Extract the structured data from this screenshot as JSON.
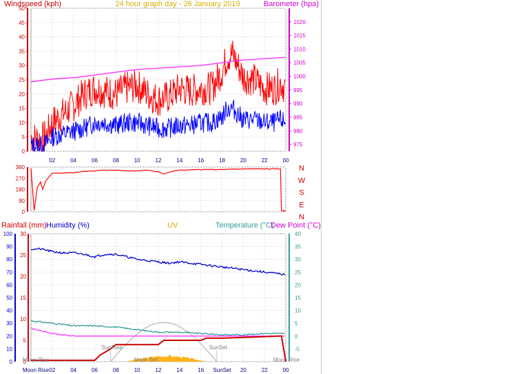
{
  "chart_data": [
    {
      "type": "line",
      "title": "24 hour graph day - 26 January 2019",
      "left_axis_label": "Windspeed (kph)",
      "right_axis_label": "Barometer (hpa)",
      "x_ticks": [
        "02",
        "04",
        "06",
        "08",
        "10",
        "12",
        "14",
        "16",
        "18",
        "20",
        "22",
        "00"
      ],
      "left_ticks": [
        0,
        5,
        10,
        15,
        20,
        25,
        30,
        35,
        40,
        45,
        50
      ],
      "left_range": [
        0,
        50
      ],
      "right_ticks": [
        975,
        980,
        985,
        990,
        995,
        1000,
        1005,
        1010,
        1015,
        1020
      ],
      "right_range": [
        972.5,
        1025
      ],
      "grid": true,
      "colors": {
        "wind_gust": "#ff0000",
        "wind_avg": "#0000ff",
        "barometer": "#ff33ff"
      },
      "series": [
        {
          "key": "wind_gust",
          "axis": "left",
          "x": [
            0,
            1,
            1.5,
            2,
            3,
            4,
            5,
            6,
            7,
            8,
            9,
            10,
            11,
            12,
            13,
            14,
            15,
            16,
            17,
            18,
            18.5,
            19,
            19.5,
            20,
            21,
            22,
            23,
            23.5,
            24
          ],
          "values": [
            5,
            4,
            6,
            10,
            13,
            16,
            20,
            22,
            21,
            20,
            22,
            23,
            20,
            18,
            19,
            22,
            21,
            22,
            22,
            28,
            33,
            34,
            30,
            26,
            25,
            22,
            22,
            24,
            22
          ]
        },
        {
          "key": "wind_avg",
          "axis": "left",
          "x": [
            0,
            1,
            1.5,
            2,
            3,
            4,
            5,
            6,
            7,
            8,
            9,
            10,
            11,
            12,
            13,
            14,
            15,
            16,
            17,
            18,
            18.5,
            19,
            19.5,
            20,
            21,
            22,
            23,
            23.5,
            24
          ],
          "values": [
            2,
            2,
            3,
            5,
            6,
            7,
            8,
            10,
            10,
            9,
            10,
            10,
            9,
            8,
            8,
            9,
            9,
            10,
            10,
            12,
            15,
            15,
            13,
            11,
            11,
            10,
            10,
            11,
            10
          ]
        },
        {
          "key": "barometer",
          "axis": "right",
          "x": [
            0,
            2,
            4,
            6,
            8,
            10,
            12,
            14,
            16,
            18,
            20,
            22,
            24
          ],
          "values": [
            998,
            999,
            999.5,
            1000.5,
            1001.5,
            1002.5,
            1003,
            1003.5,
            1004,
            1005,
            1006,
            1006.5,
            1007
          ]
        }
      ]
    },
    {
      "type": "line",
      "y_ticks": [
        0,
        90,
        180,
        270,
        360
      ],
      "y_range": [
        0,
        360
      ],
      "right_labels": [
        "N",
        "W",
        "S",
        "E",
        "N"
      ],
      "color": "#ff0000",
      "x": [
        0,
        0.3,
        0.6,
        0.9,
        1.1,
        1.4,
        1.7,
        2,
        3,
        4,
        5,
        6,
        7,
        8,
        9,
        10,
        11,
        12,
        12.5,
        13,
        14,
        16,
        18,
        20,
        22,
        23.5,
        23.6,
        24
      ],
      "values": [
        350,
        10,
        200,
        240,
        180,
        250,
        280,
        310,
        310,
        315,
        325,
        330,
        335,
        335,
        330,
        330,
        335,
        320,
        305,
        320,
        335,
        340,
        340,
        345,
        345,
        345,
        10,
        5
      ]
    },
    {
      "type": "line",
      "top_labels": [
        "Rainfall (mm)",
        "Humidity (%)",
        "UV",
        "Temperature (°C)",
        "Dew Point (°C)"
      ],
      "rain_ticks": [
        0,
        5,
        10,
        15,
        20,
        25,
        30
      ],
      "rain_range": [
        0,
        30
      ],
      "humidity_ticks": [
        0,
        10,
        20,
        30,
        40,
        50,
        60,
        70,
        80,
        90,
        100
      ],
      "humidity_range": [
        0,
        100
      ],
      "temp_ticks": [
        -5,
        0,
        5,
        10,
        15,
        20,
        25,
        30,
        35,
        40
      ],
      "temp_range": [
        -10,
        40
      ],
      "x_ticks": [
        "Moon Rise",
        "02",
        "04",
        "06",
        "08",
        "10",
        "12",
        "14",
        "16",
        "SunSet",
        "20",
        "22",
        "00"
      ],
      "annotations": [
        "Moon Rise",
        "Moon Rise",
        "SunRise",
        "Moon Set",
        "SunSet",
        "SunSet"
      ],
      "colors": {
        "humidity": "#0000cc",
        "temperature": "#339999",
        "dew_point": "#ff33ff",
        "rainfall": "#cc0000",
        "uv_fill": "#ffaa00",
        "sun_curve": "#c0c0c0"
      },
      "series": [
        {
          "key": "humidity",
          "axis": "humidity",
          "x": [
            0,
            1,
            2,
            3,
            4,
            5,
            6,
            7,
            8,
            9,
            10,
            11,
            12,
            13,
            14,
            15,
            16,
            17,
            18,
            19,
            20,
            21,
            22,
            23,
            24
          ],
          "values": [
            88,
            88,
            86,
            85,
            85,
            84,
            82,
            84,
            84,
            82,
            80,
            79,
            78,
            77,
            78,
            77,
            76,
            75,
            74,
            73,
            72,
            71,
            70,
            69,
            68
          ]
        },
        {
          "key": "temperature",
          "axis": "temp",
          "x": [
            0,
            2,
            4,
            6,
            8,
            10,
            12,
            14,
            16,
            18,
            20,
            22,
            24
          ],
          "values": [
            6,
            5,
            4,
            4,
            3.5,
            2.5,
            1.5,
            1.5,
            1,
            0.5,
            0.5,
            1,
            1
          ]
        },
        {
          "key": "dew_point",
          "axis": "temp",
          "x": [
            0,
            2,
            4,
            6,
            8,
            10,
            12,
            14,
            16,
            18,
            20,
            22,
            24
          ],
          "values": [
            3,
            1,
            0,
            -1,
            -2,
            -2.5,
            -3,
            -3.5,
            -4,
            -4,
            -4.5,
            -4.5,
            -5
          ]
        },
        {
          "key": "rainfall",
          "axis": "rain",
          "x": [
            0,
            6,
            6.5,
            7.5,
            8,
            12,
            12.5,
            16,
            16.5,
            18,
            23.5,
            23.6,
            24
          ],
          "values": [
            0.3,
            0.3,
            1.5,
            3,
            4,
            4,
            5,
            5,
            5.5,
            5.5,
            6,
            6,
            0
          ]
        }
      ]
    }
  ]
}
